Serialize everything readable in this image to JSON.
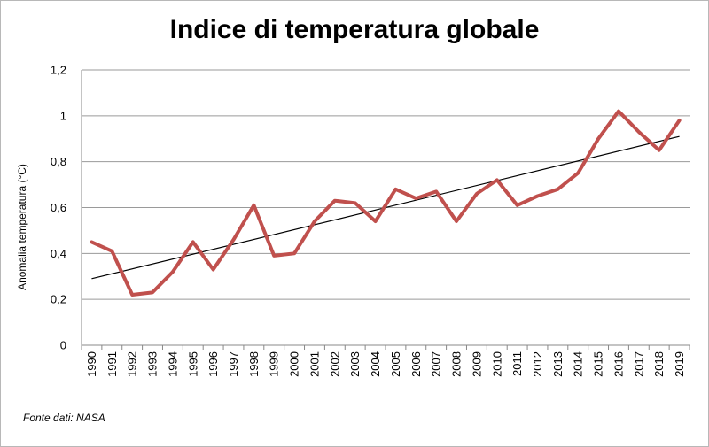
{
  "chart_data": {
    "type": "line",
    "title": "Indice di temperatura globale",
    "xlabel": "",
    "ylabel": "Anomalia temperatura (°C)",
    "categories": [
      "1990",
      "1991",
      "1992",
      "1993",
      "1994",
      "1995",
      "1996",
      "1997",
      "1998",
      "1999",
      "2000",
      "2001",
      "2002",
      "2003",
      "2004",
      "2005",
      "2006",
      "2007",
      "2008",
      "2009",
      "2010",
      "2011",
      "2012",
      "2013",
      "2014",
      "2015",
      "2016",
      "2017",
      "2018",
      "2019"
    ],
    "series": [
      {
        "values": [
          0.45,
          0.41,
          0.22,
          0.23,
          0.32,
          0.45,
          0.33,
          0.46,
          0.61,
          0.39,
          0.4,
          0.54,
          0.63,
          0.62,
          0.54,
          0.68,
          0.64,
          0.67,
          0.54,
          0.66,
          0.72,
          0.61,
          0.65,
          0.68,
          0.75,
          0.9,
          1.02,
          0.93,
          0.85,
          0.98
        ],
        "color": "#c0504d"
      }
    ],
    "trendline": {
      "start": 0.29,
      "end": 0.91,
      "color": "#000000"
    },
    "yticks": [
      "0",
      "0,2",
      "0,4",
      "0,6",
      "0,8",
      "1",
      "1,2"
    ],
    "ylim": [
      0,
      1.2
    ],
    "grid": true,
    "legend": "none",
    "source": "Fonte dati: NASA"
  }
}
